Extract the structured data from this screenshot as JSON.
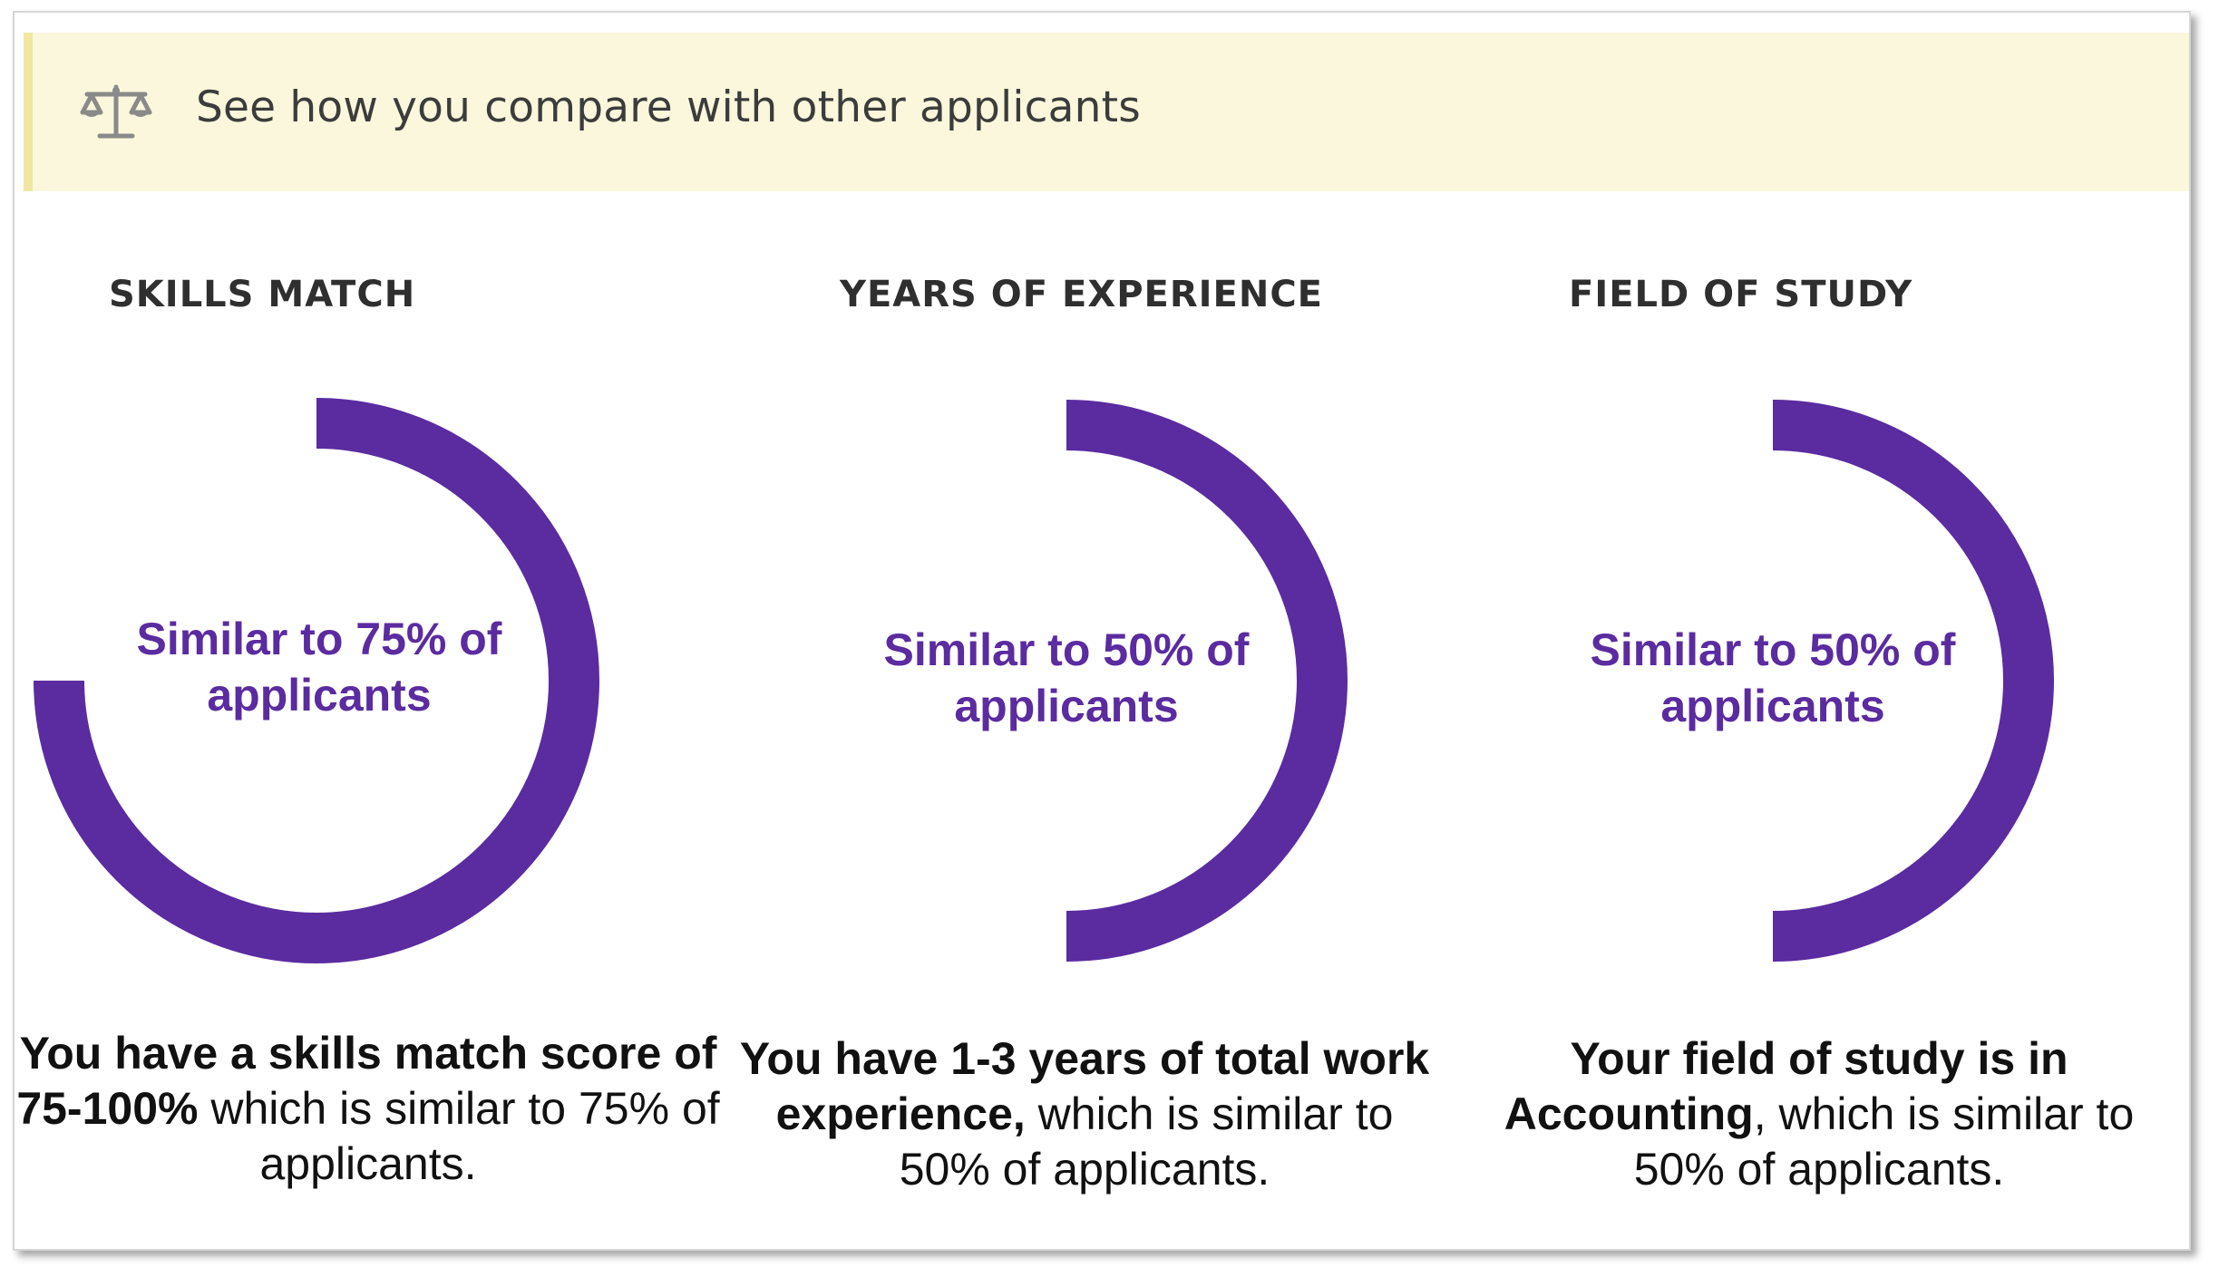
{
  "banner": {
    "title": "See how you compare with other applicants",
    "icon": "scale-icon"
  },
  "colors": {
    "ring": "#5b2ba0",
    "label": "#5b2ba0",
    "banner_bg": "#fbf7dc"
  },
  "metrics": [
    {
      "heading": "SKILLS MATCH",
      "gauge_label": "Similar to 75% of applicants",
      "percent": 75,
      "desc_bold": "You have a skills match score of 75-100%",
      "desc_rest": " which is similar to 75% of applicants."
    },
    {
      "heading": "YEARS OF EXPERIENCE",
      "gauge_label": "Similar to 50% of applicants",
      "percent": 50,
      "desc_bold": "You have 1-3 years of total work experience,",
      "desc_rest": " which is similar to 50% of applicants."
    },
    {
      "heading": "FIELD OF STUDY",
      "gauge_label": "Similar to 50% of applicants",
      "percent": 50,
      "desc_bold": "Your field of study is in Accounting",
      "desc_rest": ", which is similar to 50% of applicants."
    }
  ]
}
